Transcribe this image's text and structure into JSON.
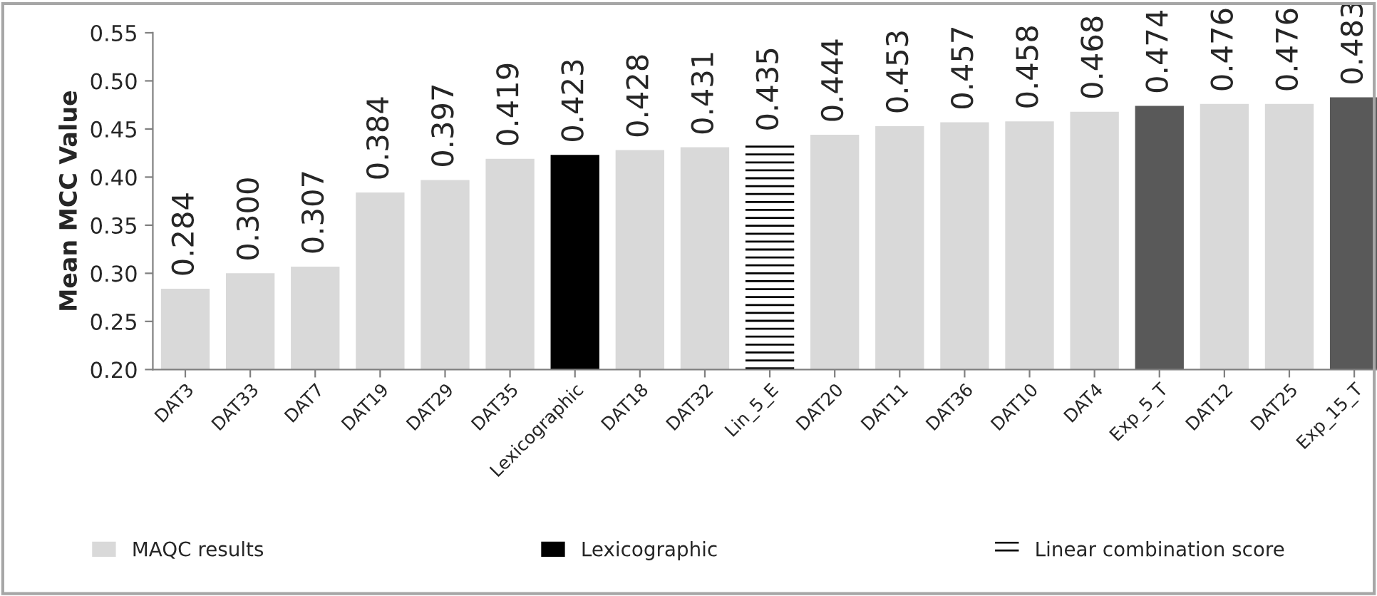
{
  "chart_data": {
    "type": "bar",
    "ylabel": "Mean MCC Value",
    "categories": [
      "DAT3",
      "DAT33",
      "DAT7",
      "DAT19",
      "DAT29",
      "DAT35",
      "Lexicographic",
      "DAT18",
      "DAT32",
      "Lin_5_E",
      "DAT20",
      "DAT11",
      "DAT36",
      "DAT10",
      "DAT4",
      "Exp_5_T",
      "DAT12",
      "DAT25",
      "Exp_15_T"
    ],
    "series": [
      {
        "name": "MAQC results",
        "color": "#d9d9d9",
        "values": [
          0.284,
          0.3,
          0.307,
          0.384,
          0.397,
          0.419,
          null,
          0.428,
          0.431,
          null,
          0.444,
          0.453,
          0.457,
          0.458,
          0.468,
          null,
          0.476,
          0.476,
          null
        ],
        "value_labels": [
          "0.284",
          "0.300",
          "0.307",
          "0.384",
          "0.397",
          "0.419",
          null,
          "0.428",
          "0.431",
          null,
          "0.444",
          "0.453",
          "0.457",
          "0.458",
          "0.468",
          null,
          "0.476",
          "0.476",
          null
        ]
      },
      {
        "name": "Lexicographic",
        "color": "#000000",
        "values": [
          null,
          null,
          null,
          null,
          null,
          null,
          0.423,
          null,
          null,
          null,
          null,
          null,
          null,
          null,
          null,
          null,
          null,
          null,
          null
        ],
        "value_labels": [
          null,
          null,
          null,
          null,
          null,
          null,
          "0.423",
          null,
          null,
          null,
          null,
          null,
          null,
          null,
          null,
          null,
          null,
          null,
          null
        ]
      },
      {
        "name": "Linear combination score",
        "color": "#ffffff",
        "values": [
          null,
          null,
          null,
          null,
          null,
          null,
          null,
          null,
          null,
          0.435,
          null,
          null,
          null,
          null,
          null,
          null,
          null,
          null,
          null
        ],
        "value_labels": [
          null,
          null,
          null,
          null,
          null,
          null,
          null,
          null,
          null,
          "0.435",
          null,
          null,
          null,
          null,
          null,
          null,
          null,
          null,
          null
        ]
      },
      {
        "color": "#595959",
        "values": [
          null,
          null,
          null,
          null,
          null,
          null,
          null,
          null,
          null,
          null,
          null,
          null,
          null,
          null,
          null,
          0.474,
          null,
          null,
          0.483
        ],
        "value_labels": [
          null,
          null,
          null,
          null,
          null,
          null,
          null,
          null,
          null,
          null,
          null,
          null,
          null,
          null,
          null,
          "0.474",
          null,
          null,
          "0.483"
        ]
      }
    ],
    "ylim": [
      0.2,
      0.55
    ],
    "yticks": [
      {
        "value": 0.2,
        "label": "0.20"
      },
      {
        "value": 0.25,
        "label": "0.25"
      },
      {
        "value": 0.3,
        "label": "0.30"
      },
      {
        "value": 0.35,
        "label": "0.35"
      },
      {
        "value": 0.4,
        "label": "0.40"
      },
      {
        "value": 0.45,
        "label": "0.45"
      },
      {
        "value": 0.5,
        "label": "0.50"
      },
      {
        "value": 0.55,
        "label": "0.55"
      }
    ],
    "grid": false,
    "legend": "bottom"
  }
}
